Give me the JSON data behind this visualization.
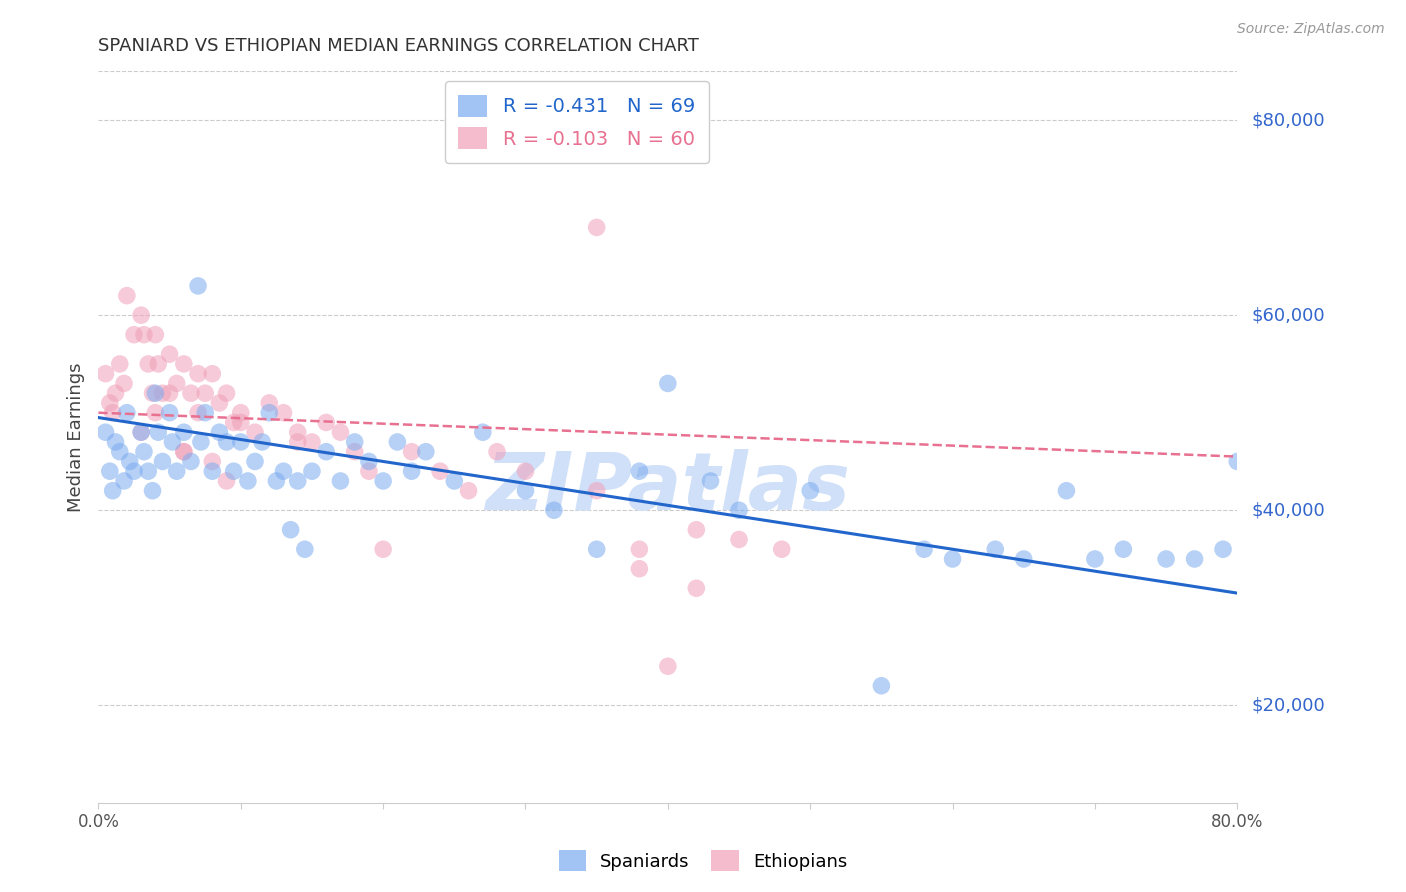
{
  "title": "SPANIARD VS ETHIOPIAN MEDIAN EARNINGS CORRELATION CHART",
  "source": "Source: ZipAtlas.com",
  "ylabel": "Median Earnings",
  "yticks": [
    20000,
    40000,
    60000,
    80000
  ],
  "ytick_labels": [
    "$20,000",
    "$40,000",
    "$60,000",
    "$80,000"
  ],
  "legend_entries": [
    {
      "label": "R = -0.431   N = 69",
      "color": "#5b8fd4"
    },
    {
      "label": "R = -0.103   N = 60",
      "color": "#e8708a"
    }
  ],
  "spaniards_color": "#7aabf0",
  "ethiopians_color": "#f0a0b8",
  "blue_line_color": "#2266cc",
  "pink_line_color": "#e87090",
  "watermark": "ZIPatlas",
  "watermark_color": "#d0e0f8",
  "background_color": "#ffffff",
  "grid_color": "#cccccc",
  "title_color": "#333333",
  "source_color": "#999999",
  "ytick_color": "#3366cc",
  "spaniards_x": [
    0.005,
    0.008,
    0.01,
    0.012,
    0.015,
    0.018,
    0.02,
    0.022,
    0.025,
    0.03,
    0.032,
    0.035,
    0.038,
    0.04,
    0.042,
    0.045,
    0.05,
    0.052,
    0.055,
    0.06,
    0.065,
    0.07,
    0.072,
    0.075,
    0.08,
    0.085,
    0.09,
    0.095,
    0.1,
    0.105,
    0.11,
    0.115,
    0.12,
    0.125,
    0.13,
    0.135,
    0.14,
    0.145,
    0.15,
    0.16,
    0.17,
    0.18,
    0.19,
    0.2,
    0.21,
    0.22,
    0.23,
    0.25,
    0.27,
    0.3,
    0.32,
    0.35,
    0.38,
    0.4,
    0.43,
    0.45,
    0.5,
    0.55,
    0.58,
    0.6,
    0.63,
    0.65,
    0.68,
    0.7,
    0.72,
    0.75,
    0.77,
    0.79,
    0.8
  ],
  "spaniards_y": [
    48000,
    44000,
    42000,
    47000,
    46000,
    43000,
    50000,
    45000,
    44000,
    48000,
    46000,
    44000,
    42000,
    52000,
    48000,
    45000,
    50000,
    47000,
    44000,
    48000,
    45000,
    63000,
    47000,
    50000,
    44000,
    48000,
    47000,
    44000,
    47000,
    43000,
    45000,
    47000,
    50000,
    43000,
    44000,
    38000,
    43000,
    36000,
    44000,
    46000,
    43000,
    47000,
    45000,
    43000,
    47000,
    44000,
    46000,
    43000,
    48000,
    42000,
    40000,
    36000,
    44000,
    53000,
    43000,
    40000,
    42000,
    22000,
    36000,
    35000,
    36000,
    35000,
    42000,
    35000,
    36000,
    35000,
    35000,
    36000,
    45000
  ],
  "ethiopians_x": [
    0.005,
    0.008,
    0.01,
    0.012,
    0.015,
    0.018,
    0.02,
    0.025,
    0.03,
    0.032,
    0.035,
    0.038,
    0.04,
    0.042,
    0.045,
    0.05,
    0.055,
    0.06,
    0.065,
    0.07,
    0.075,
    0.08,
    0.085,
    0.09,
    0.095,
    0.1,
    0.11,
    0.12,
    0.13,
    0.14,
    0.15,
    0.16,
    0.17,
    0.18,
    0.19,
    0.2,
    0.22,
    0.24,
    0.26,
    0.28,
    0.3,
    0.35,
    0.38,
    0.42,
    0.45,
    0.48,
    0.35,
    0.06,
    0.07,
    0.08,
    0.09,
    0.1,
    0.38,
    0.4,
    0.42,
    0.03,
    0.04,
    0.05,
    0.06,
    0.14
  ],
  "ethiopians_y": [
    54000,
    51000,
    50000,
    52000,
    55000,
    53000,
    62000,
    58000,
    60000,
    58000,
    55000,
    52000,
    58000,
    55000,
    52000,
    56000,
    53000,
    55000,
    52000,
    54000,
    52000,
    54000,
    51000,
    52000,
    49000,
    50000,
    48000,
    51000,
    50000,
    48000,
    47000,
    49000,
    48000,
    46000,
    44000,
    36000,
    46000,
    44000,
    42000,
    46000,
    44000,
    42000,
    36000,
    38000,
    37000,
    36000,
    69000,
    46000,
    50000,
    45000,
    43000,
    49000,
    34000,
    24000,
    32000,
    48000,
    50000,
    52000,
    46000,
    47000
  ],
  "blue_trendline_x": [
    0.0,
    0.8
  ],
  "blue_trendline_y": [
    49500,
    31500
  ],
  "pink_trendline_x": [
    0.0,
    0.8
  ],
  "pink_trendline_y": [
    50000,
    45500
  ],
  "xmin": 0.0,
  "xmax": 0.8,
  "ymin": 10000,
  "ymax": 85000
}
